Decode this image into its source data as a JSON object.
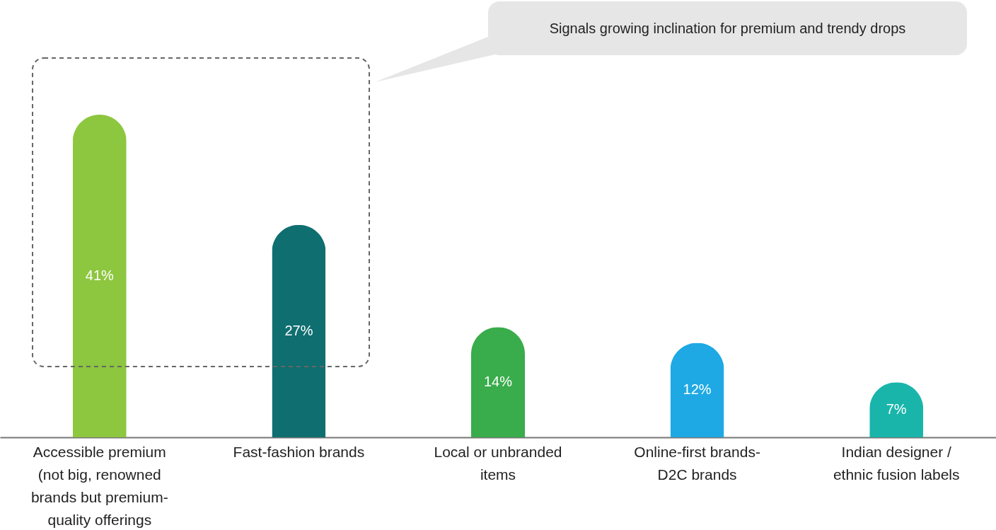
{
  "chart_data": {
    "type": "bar",
    "categories": [
      "Accessible premium (not big, renowned brands but premium-quality offerings",
      "Fast-fashion brands",
      "Local or unbranded items",
      "Online-first brands-D2C brands",
      "Indian designer / ethnic fusion labels"
    ],
    "values": [
      41,
      27,
      14,
      12,
      7
    ],
    "colors": [
      "#8dc63f",
      "#0f6e70",
      "#39ac4b",
      "#1ea9e4",
      "#19b5aa"
    ],
    "value_labels": [
      "41%",
      "27%",
      "14%",
      "12%",
      "7%"
    ],
    "annotations": [
      "Signals growing inclination for premium and trendy drops"
    ]
  }
}
